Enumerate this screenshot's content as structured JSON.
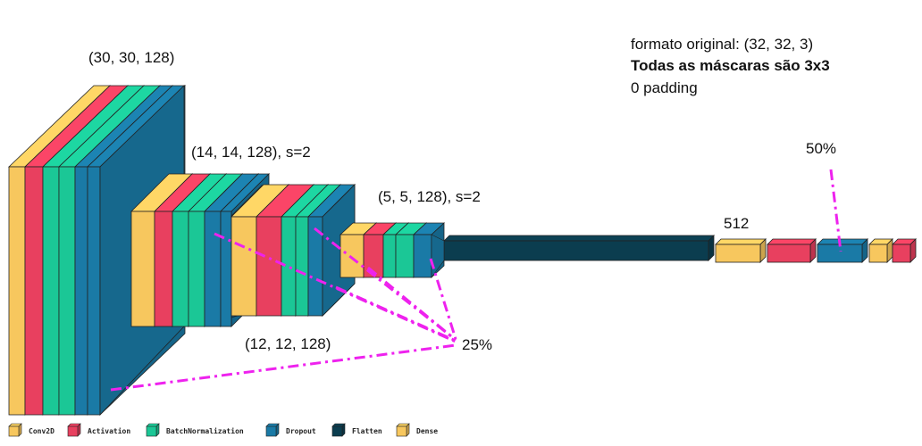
{
  "colors": {
    "conv2d": "#F7C75E",
    "activation": "#E8405F",
    "batchnorm": "#1BC796",
    "dropout": "#1A7AA6",
    "flatten": "#0B3D4F",
    "dense": "#F7C75E",
    "annotation": "#EE22EE"
  },
  "notes": {
    "line1": "formato original: (32, 32, 3)",
    "line2": "Todas as máscaras são 3x3",
    "line3": "0 padding"
  },
  "labels": {
    "block1_shape": "(30, 30, 128)",
    "block2_shape": "(14, 14, 128), s=2",
    "block3_shape": "(12, 12, 128)",
    "block4_shape": "(5, 5, 128), s=2",
    "dense_units": "512",
    "dropout_25": "25%",
    "dropout_50": "50%"
  },
  "legend": [
    {
      "label": "Conv2D",
      "color_key": "conv2d"
    },
    {
      "label": "Activation",
      "color_key": "activation"
    },
    {
      "label": "BatchNormalization",
      "color_key": "batchnorm"
    },
    {
      "label": "Dropout",
      "color_key": "dropout"
    },
    {
      "label": "Flatten",
      "color_key": "flatten"
    },
    {
      "label": "Dense",
      "color_key": "dense"
    }
  ]
}
